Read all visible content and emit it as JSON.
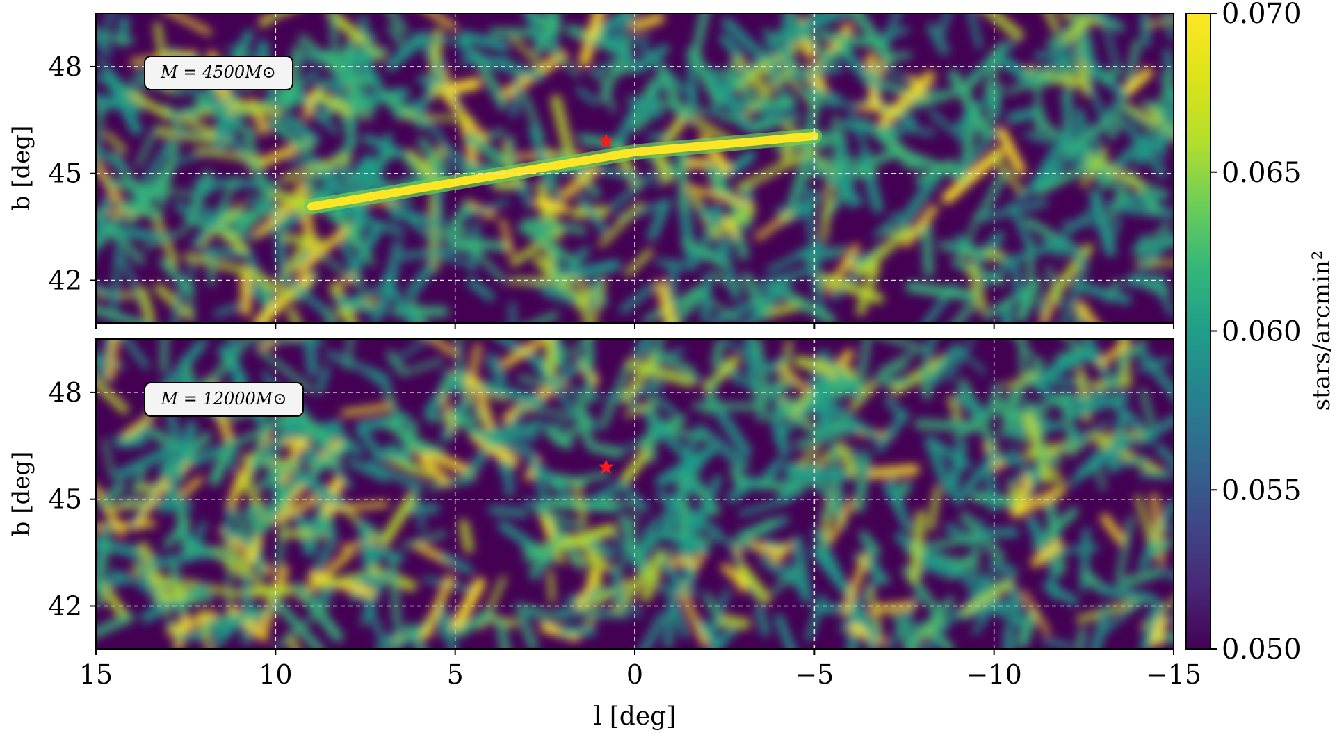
{
  "colors": {
    "colormap": "viridis",
    "star": "#ff1a1a",
    "grid": "#e8e8e8",
    "axes": "#000000"
  },
  "chart_data": [
    {
      "type": "heatmap",
      "panel": "top",
      "annotation": "M = 4500M⊙",
      "xlim": [
        15,
        -15
      ],
      "ylim": [
        40.8,
        49.5
      ],
      "ylabel": "b [deg]",
      "yticks": [
        "42",
        "45",
        "48"
      ],
      "xticks": [
        "15",
        "10",
        "5",
        "0",
        "−5",
        "−10",
        "−15"
      ],
      "grid": true,
      "marker": {
        "symbol": "star",
        "l": 0.8,
        "b": 45.9
      },
      "stream": {
        "present": true,
        "l_range": [
          9,
          -5
        ],
        "b_center": 45.6,
        "b_slope": 0.09
      }
    },
    {
      "type": "heatmap",
      "panel": "bottom",
      "annotation": "M = 12000M⊙",
      "xlim": [
        15,
        -15
      ],
      "ylim": [
        40.8,
        49.5
      ],
      "ylabel": "b [deg]",
      "yticks": [
        "42",
        "45",
        "48"
      ],
      "xticks": [
        "15",
        "10",
        "5",
        "0",
        "−5",
        "−10",
        "−15"
      ],
      "xlabel": "l [deg]",
      "grid": true,
      "marker": {
        "symbol": "star",
        "l": 0.8,
        "b": 45.9
      },
      "stream": {
        "present": false
      }
    }
  ],
  "colorbar": {
    "label": "stars/arcmin²",
    "range": [
      0.05,
      0.07
    ],
    "ticks": [
      "0.050",
      "0.055",
      "0.060",
      "0.065",
      "0.070"
    ]
  }
}
